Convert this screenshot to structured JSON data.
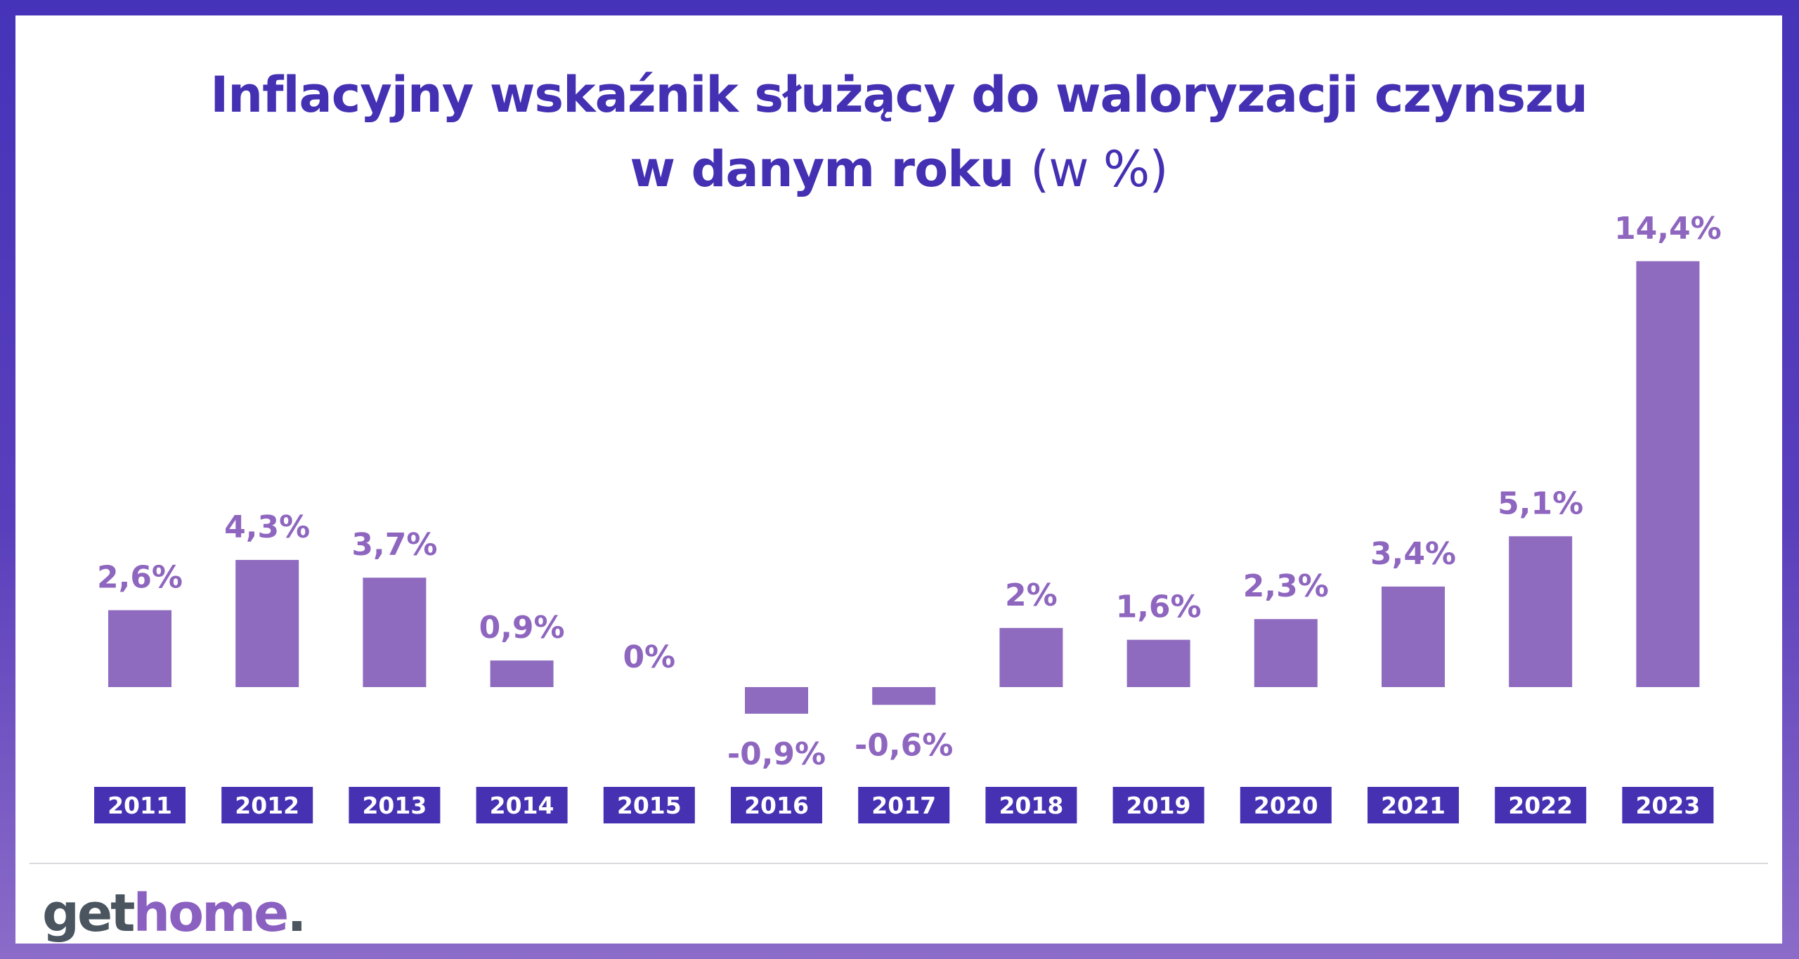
{
  "chart_data": {
    "type": "bar",
    "title_main_line1": "Inflacyjny wskaźnik służący do waloryzacji czynszu",
    "title_main_line2": "w danym roku",
    "title_unit": "(w %)",
    "categories": [
      "2011",
      "2012",
      "2013",
      "2014",
      "2015",
      "2016",
      "2017",
      "2018",
      "2019",
      "2020",
      "2021",
      "2022",
      "2023"
    ],
    "values": [
      2.6,
      4.3,
      3.7,
      0.9,
      0,
      -0.9,
      -0.6,
      2,
      1.6,
      2.3,
      3.4,
      5.1,
      14.4
    ],
    "data_labels": [
      "2,6%",
      "4,3%",
      "3,7%",
      "0,9%",
      "0%",
      "-0,9%",
      "-0,6%",
      "2%",
      "1,6%",
      "2,3%",
      "3,4%",
      "5,1%",
      "14,4%"
    ],
    "colors": {
      "bar": "#8e6bbf",
      "label": "#8e66bf",
      "year_box": "#4631b3",
      "title": "#4430b3"
    },
    "grid": false,
    "legend": "none"
  },
  "logo": {
    "part1": "get",
    "part2": "home",
    "part3": "."
  }
}
